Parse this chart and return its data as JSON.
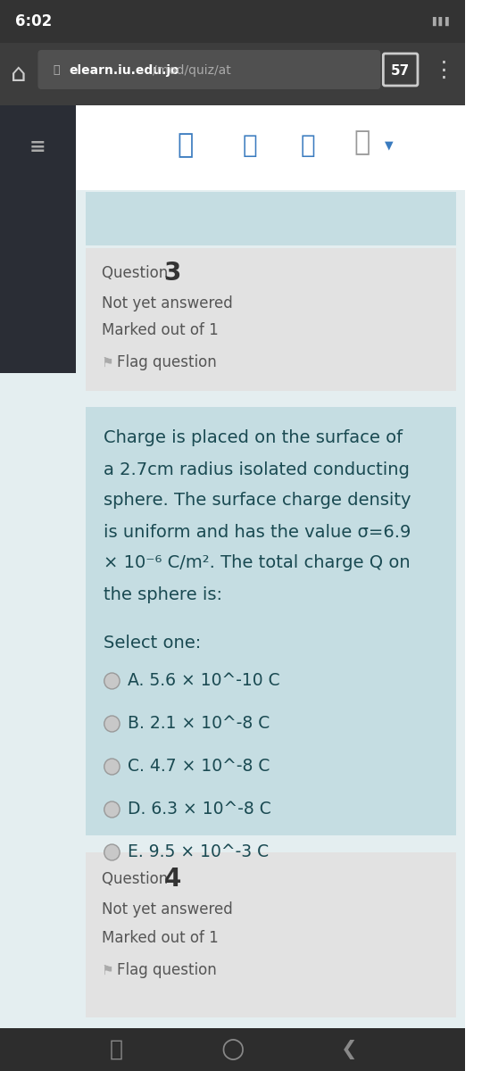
{
  "status_bar_bg": "#333333",
  "status_bar_text": "6:02",
  "nav_bar_bg": "#3d3d3d",
  "url_bar_bg": "#4a4a4a",
  "url_text_bold": "elearn.iu.edu.jo",
  "url_text_light": "/mod/quiz/at",
  "tab_number": "57",
  "page_bg": "#e4eef0",
  "sidebar_bg": "#2a2d35",
  "header_nav_bg": "#ffffff",
  "question_box_bg": "#e2e2e2",
  "answer_box_bg": "#c5dde2",
  "question3_label": "Question ",
  "question3_number": "3",
  "question3_status": "Not yet answered",
  "question3_marked": "Marked out of 1",
  "question3_flag": "Flag question",
  "question_text_line1": "Charge is placed on the surface of",
  "question_text_line2": "a 2.7cm radius isolated conducting",
  "question_text_line3": "sphere. The surface charge density",
  "question_text_line4": "is uniform and has the value σ=6.9",
  "question_text_line5": "× 10⁻⁶ C/m². The total charge Q on",
  "question_text_line6": "the sphere is:",
  "select_one": "Select one:",
  "options": [
    "A. 5.6 × 10^-10 C",
    "B. 2.1 × 10^-8 C",
    "C. 4.7 × 10^-8 C",
    "D. 6.3 × 10^-8 C",
    "E. 9.5 × 10^-3 C"
  ],
  "question4_label": "Question ",
  "question4_number": "4",
  "question4_status": "Not yet answered",
  "question4_marked": "Marked out of 1",
  "question4_flag": "Flag question",
  "text_dark": "#1a4a52",
  "text_gray": "#555555",
  "text_lightgray": "#777777",
  "bottom_nav_bg": "#2d2d2d",
  "icon_blue": "#3a7bbf",
  "radio_fill": "#c8c8c8",
  "radio_edge": "#999999"
}
